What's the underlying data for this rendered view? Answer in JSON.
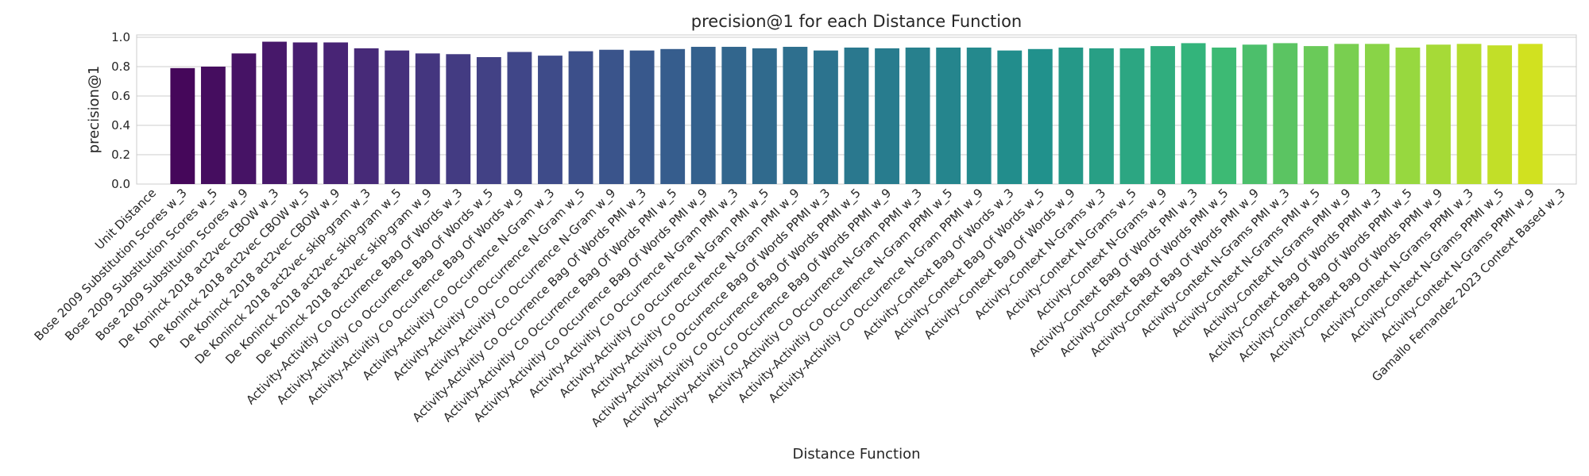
{
  "chart_data": {
    "type": "bar",
    "title": "precision@1 for each Distance Function",
    "xlabel": "Distance Function",
    "ylabel": "precision@1",
    "ylim": [
      0,
      1.0
    ],
    "yticks": [
      "0.0",
      "0.2",
      "0.4",
      "0.6",
      "0.8",
      "1.0"
    ],
    "grid": true,
    "palette": "viridis",
    "categories": [
      "Unit Distance",
      "Bose 2009 Substitution Scores w_3",
      "Bose 2009 Substitution Scores w_5",
      "Bose 2009 Substitution Scores w_9",
      "De Koninck 2018 act2vec CBOW w_3",
      "De Koninck 2018 act2vec CBOW w_5",
      "De Koninck 2018 act2vec CBOW w_9",
      "De Koninck 2018 act2vec skip-gram w_3",
      "De Koninck 2018 act2vec skip-gram w_5",
      "De Koninck 2018 act2vec skip-gram w_9",
      "Activity-Activitiy Co Occurrence Bag Of Words w_3",
      "Activity-Activitiy Co Occurrence Bag Of Words w_5",
      "Activity-Activitiy Co Occurrence Bag Of Words w_9",
      "Activity-Activitiy Co Occurrence N-Gram w_3",
      "Activity-Activitiy Co Occurrence N-Gram w_5",
      "Activity-Activitiy Co Occurrence N-Gram w_9",
      "Activity-Activitiy Co Occurrence Bag Of Words PMI w_3",
      "Activity-Activitiy Co Occurrence Bag Of Words PMI w_5",
      "Activity-Activitiy Co Occurrence Bag Of Words PMI w_9",
      "Activity-Activitiy Co Occurrence N-Gram PMI w_3",
      "Activity-Activitiy Co Occurrence N-Gram PMI w_5",
      "Activity-Activitiy Co Occurrence N-Gram PMI w_9",
      "Activity-Activitiy Co Occurrence Bag Of Words PPMI w_3",
      "Activity-Activitiy Co Occurrence Bag Of Words PPMI w_5",
      "Activity-Activitiy Co Occurrence Bag Of Words PPMI w_9",
      "Activity-Activitiy Co Occurrence N-Gram PPMI w_3",
      "Activity-Activitiy Co Occurrence N-Gram PPMI w_5",
      "Activity-Activitiy Co Occurrence N-Gram PPMI w_9",
      "Activity-Context Bag Of Words w_3",
      "Activity-Context Bag Of Words w_5",
      "Activity-Context Bag Of Words w_9",
      "Activity-Context N-Grams w_3",
      "Activity-Context N-Grams w_5",
      "Activity-Context N-Grams w_9",
      "Activity-Context Bag Of Words PMI w_3",
      "Activity-Context Bag Of Words PMI w_5",
      "Activity-Context Bag Of Words PMI w_9",
      "Activity-Context N-Grams PMI w_3",
      "Activity-Context N-Grams PMI w_5",
      "Activity-Context N-Grams PMI w_9",
      "Activity-Context Bag Of Words PPMI w_3",
      "Activity-Context Bag Of Words PPMI w_5",
      "Activity-Context Bag Of Words PPMI w_9",
      "Activity-Context N-Grams PPMI w_3",
      "Activity-Context N-Grams PPMI w_5",
      "Activity-Context N-Grams PPMI w_9",
      "Gamallo Fernandez 2023 Context Based w_3"
    ],
    "values": [
      0.0,
      0.79,
      0.8,
      0.89,
      0.97,
      0.965,
      0.965,
      0.925,
      0.91,
      0.89,
      0.885,
      0.865,
      0.9,
      0.875,
      0.905,
      0.915,
      0.91,
      0.92,
      0.935,
      0.935,
      0.925,
      0.935,
      0.91,
      0.93,
      0.925,
      0.93,
      0.93,
      0.93,
      0.91,
      0.92,
      0.93,
      0.925,
      0.925,
      0.94,
      0.96,
      0.93,
      0.95,
      0.96,
      0.94,
      0.955,
      0.955,
      0.93,
      0.95,
      0.955,
      0.945,
      0.955,
      0.0
    ]
  }
}
